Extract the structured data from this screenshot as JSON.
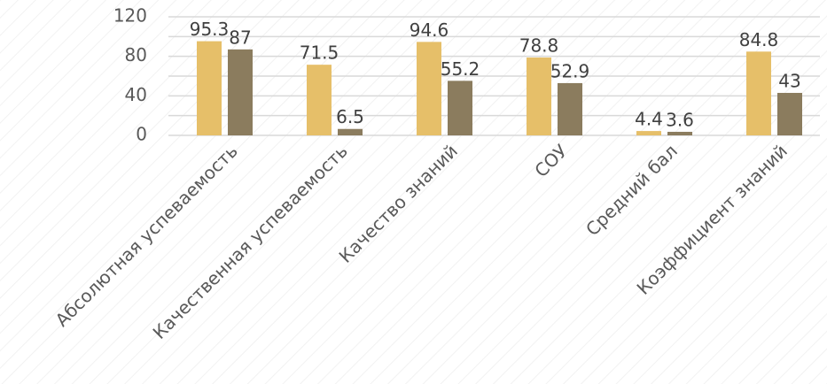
{
  "chart_data": {
    "type": "bar",
    "categories": [
      "Абсолютная успеваемость",
      "Качественная успеваемость",
      "Качество знаний",
      "СОУ",
      "Средний бал",
      "Коэффициент знаний"
    ],
    "series": [
      {
        "color": "#e6bf69",
        "values": [
          95.3,
          71.5,
          94.6,
          78.8,
          4.4,
          84.8
        ]
      },
      {
        "color": "#8b7c5e",
        "values": [
          87,
          6.5,
          55.2,
          52.9,
          3.6,
          43
        ]
      }
    ],
    "ylim": [
      0,
      120
    ],
    "yticks": [
      0,
      40,
      80,
      120
    ],
    "minor_yticks": [
      20,
      60,
      100
    ],
    "grid": true
  }
}
